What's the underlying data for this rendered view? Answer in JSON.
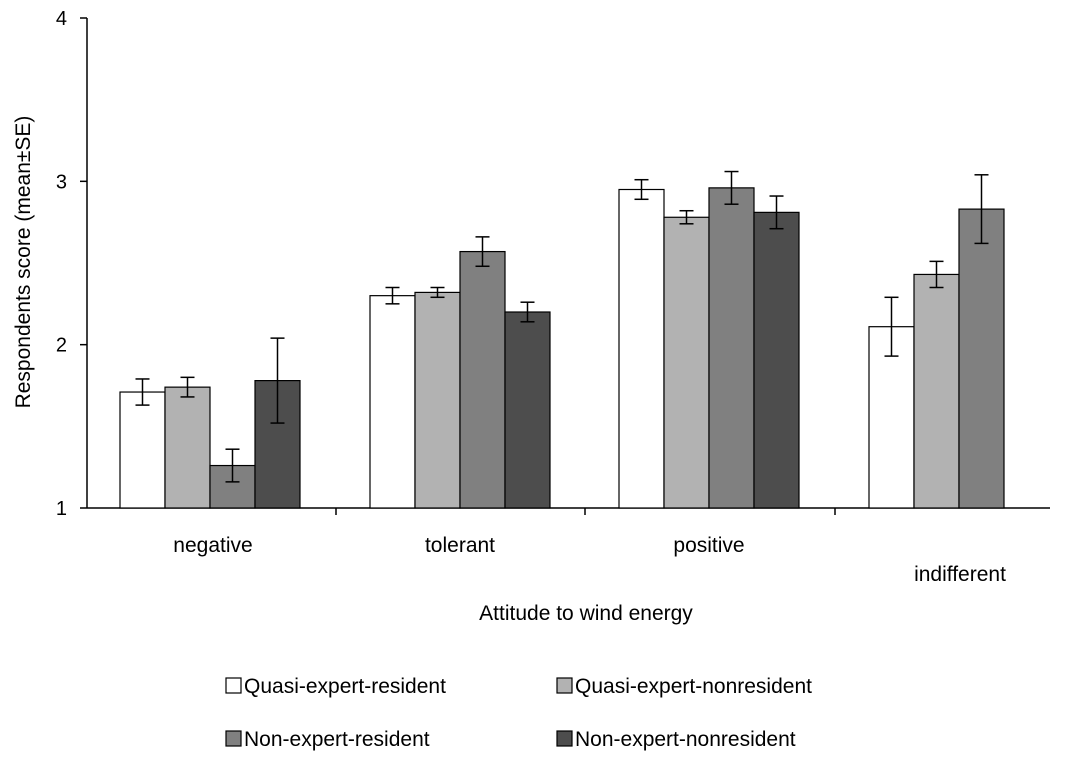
{
  "chart_data": {
    "type": "bar",
    "title": "",
    "xlabel": "Attitude to wind energy",
    "ylabel": "Respondents score (mean±SE)",
    "ylim": [
      1,
      4
    ],
    "yticks": [
      "1",
      "2",
      "3",
      "4"
    ],
    "categories": [
      "negative",
      "tolerant",
      "positive",
      "indifferent"
    ],
    "series": [
      {
        "name": "Quasi-expert-resident",
        "color": "#ffffff",
        "values": [
          1.71,
          2.3,
          2.95,
          2.11
        ],
        "errors": [
          0.08,
          0.05,
          0.06,
          0.18
        ]
      },
      {
        "name": "Quasi-expert-nonresident",
        "color": "#b2b2b2",
        "values": [
          1.74,
          2.32,
          2.78,
          2.43
        ],
        "errors": [
          0.06,
          0.03,
          0.04,
          0.08
        ]
      },
      {
        "name": "Non-expert-resident",
        "color": "#808080",
        "values": [
          1.26,
          2.57,
          2.96,
          2.83
        ],
        "errors": [
          0.1,
          0.09,
          0.1,
          0.21
        ]
      },
      {
        "name": "Non-expert-nonresident",
        "color": "#4d4d4d",
        "values": [
          1.78,
          2.2,
          2.81,
          null
        ],
        "errors": [
          0.26,
          0.06,
          0.1,
          null
        ]
      }
    ],
    "grid": false,
    "legend_position": "bottom"
  }
}
